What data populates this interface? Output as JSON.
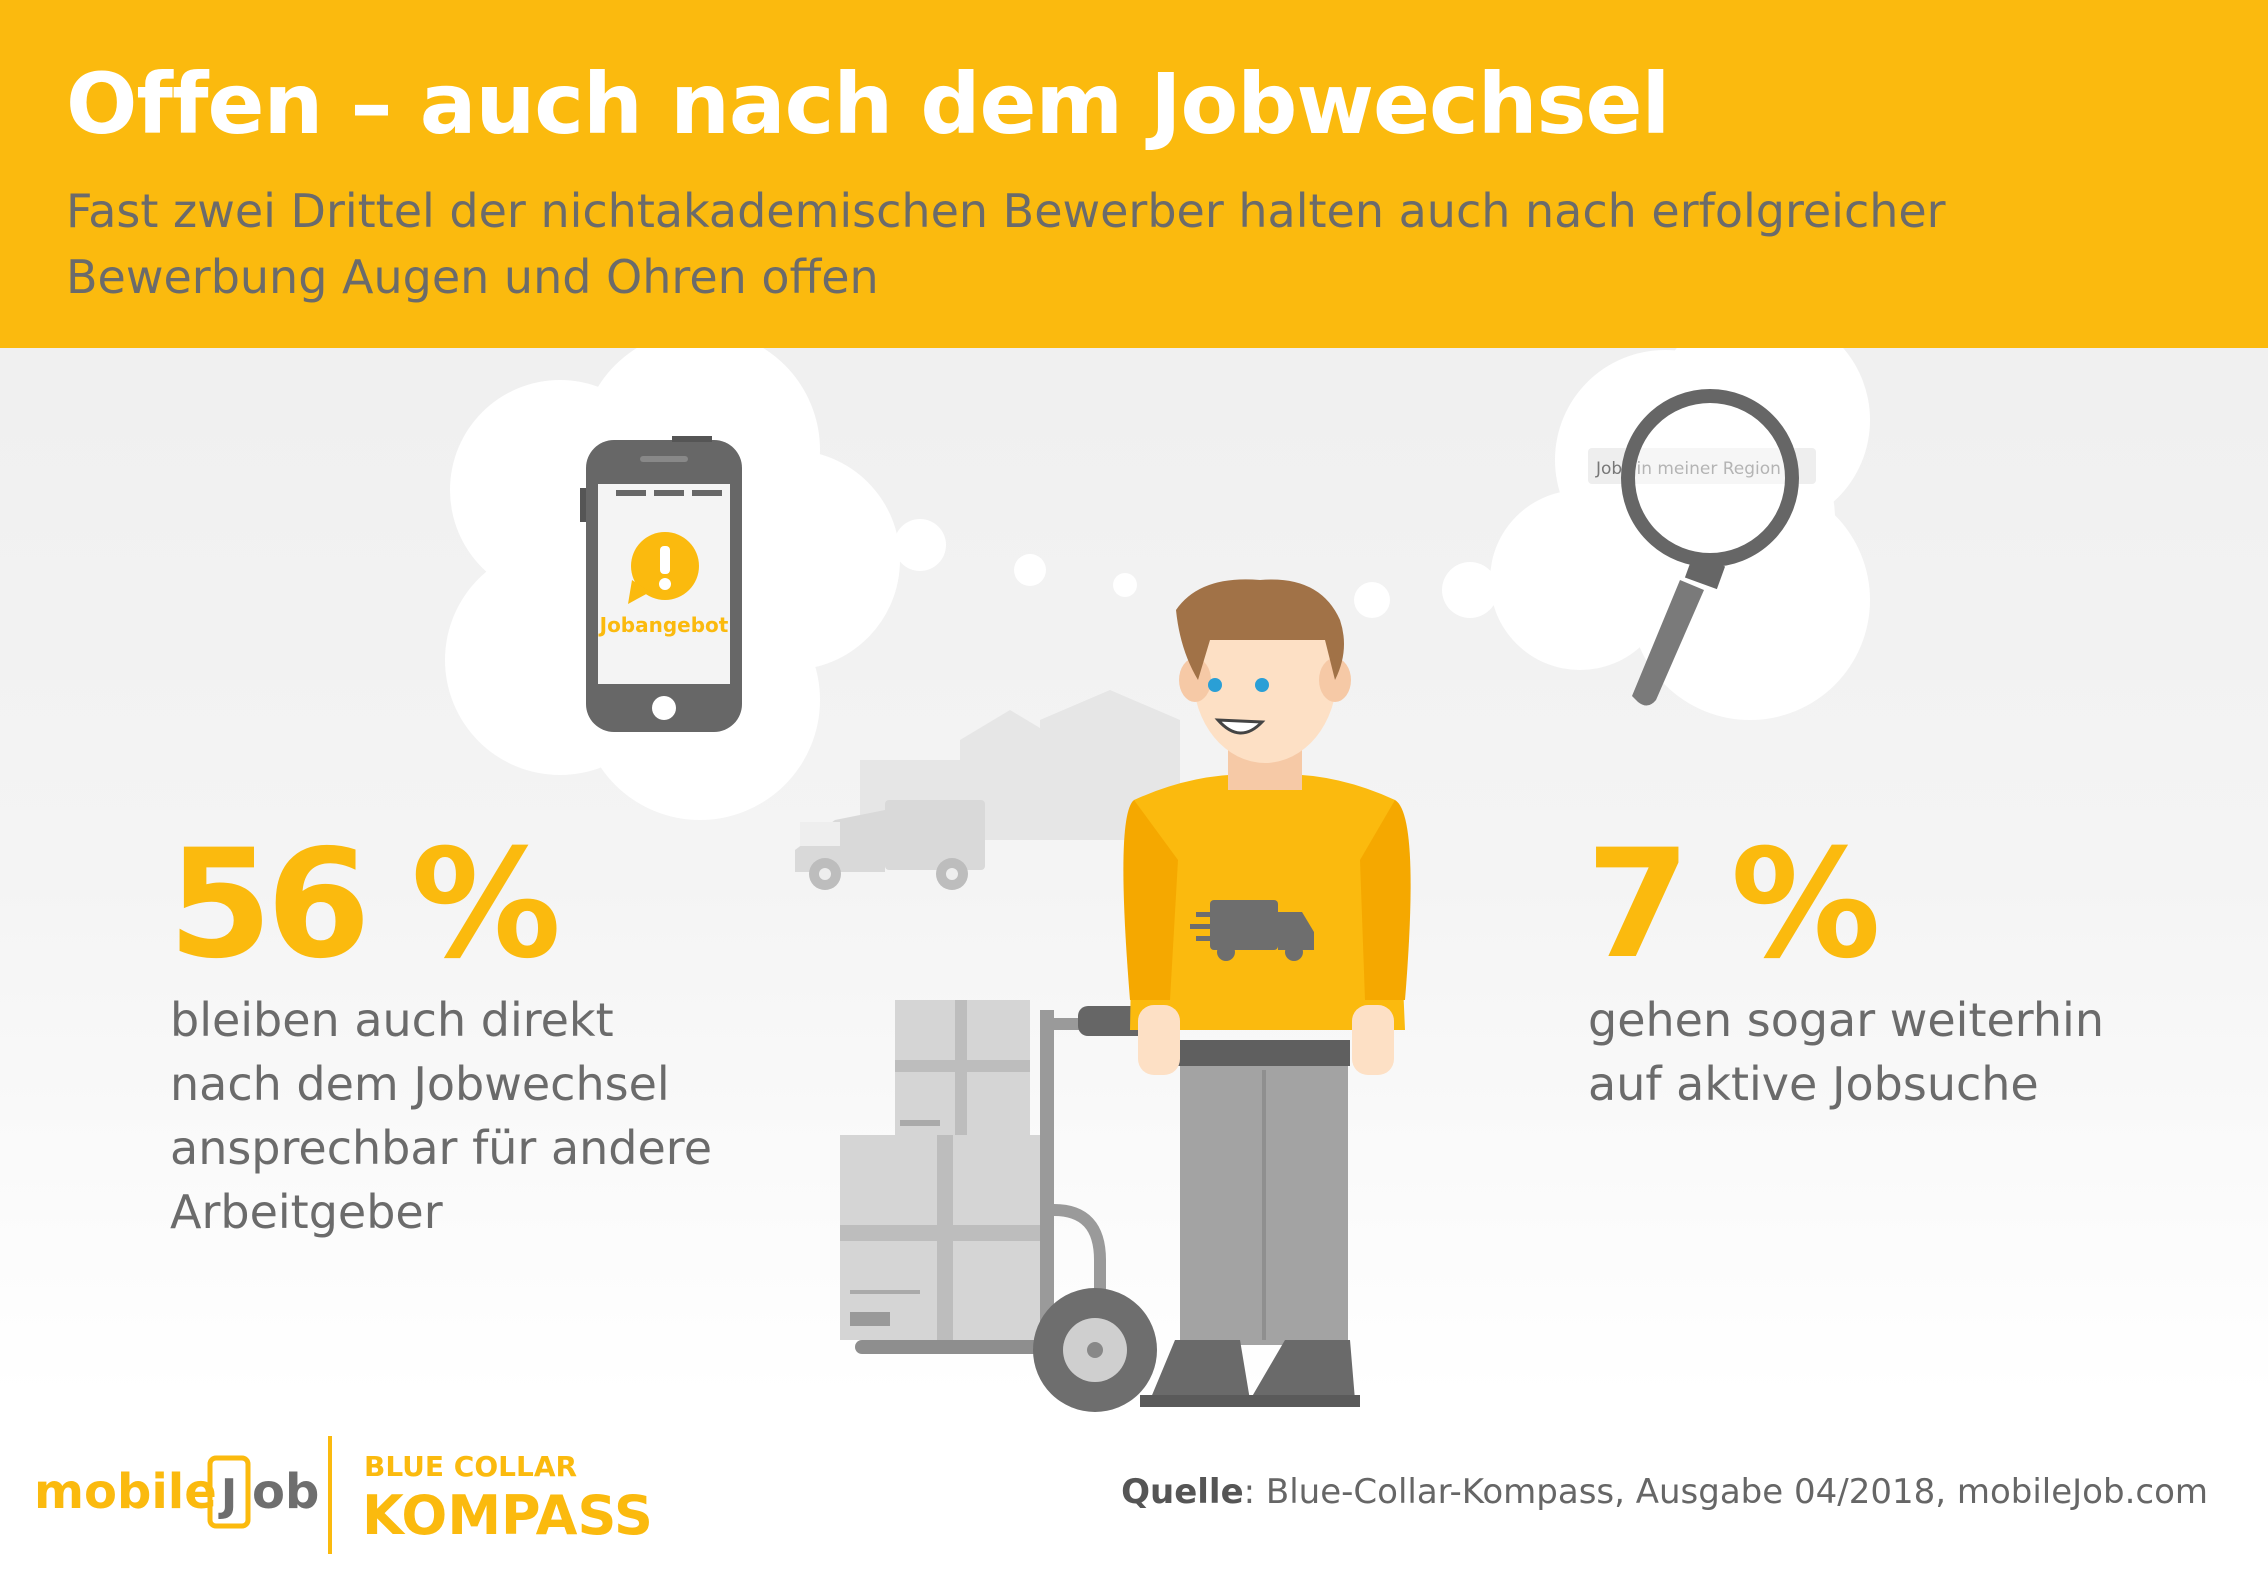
{
  "header": {
    "title": "Offen – auch nach dem Jobwechsel",
    "subtitle": "Fast zwei Drittel der nichtakademischen Bewerber halten auch nach erfolgreicher Bewerbung Augen und Ohren offen"
  },
  "phone": {
    "screen_label": "Jobangebot"
  },
  "search": {
    "field_text": "Jobs in meiner Region"
  },
  "stats": [
    {
      "value": "56 %",
      "text": "bleiben auch direkt\nnach dem Jobwechsel\nansprechbar für andere\nArbeitgeber"
    },
    {
      "value": "7 %",
      "text": "gehen sogar weiterhin\nauf aktive Jobsuche"
    }
  ],
  "footer": {
    "brand_left": "mobile",
    "brand_j": "J",
    "brand_right": "ob",
    "kompass_top": "BLUE COLLAR",
    "kompass_bottom": "KOMPASS",
    "source_label": "Quelle",
    "source_text": ": Blue-Collar-Kompass, Ausgabe 04/2018, mobileJob.com"
  },
  "colors": {
    "accent": "#fbba0e",
    "text": "#6b6b6b",
    "grey": "#6e6e6e"
  }
}
